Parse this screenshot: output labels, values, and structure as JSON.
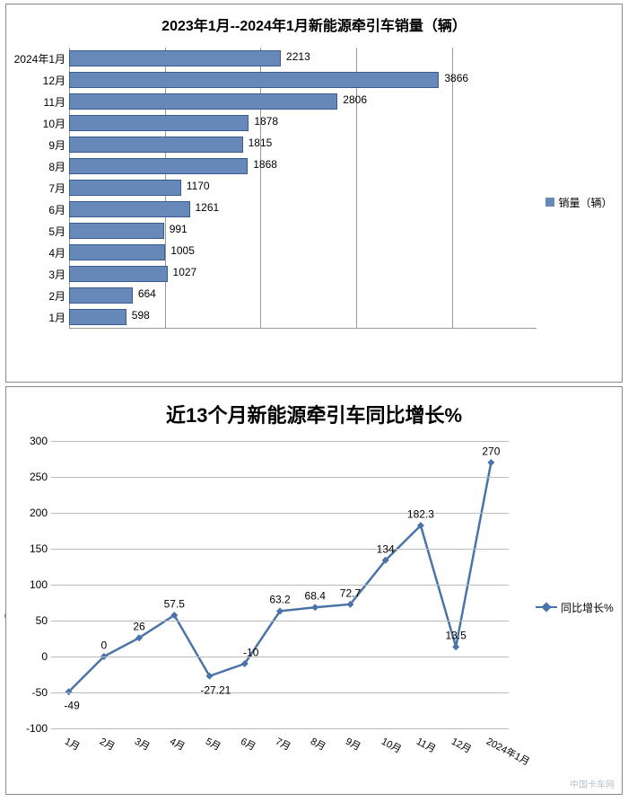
{
  "bar_chart": {
    "type": "bar-horizontal",
    "title": "2023年1月--2024年1月新能源牵引车销量（辆）",
    "title_fontsize": 16,
    "title_weight": "bold",
    "legend_label": "销量（辆）",
    "legend_color": "#6689b9",
    "bar_color": "#6689b9",
    "bar_border": "#3a5a90",
    "background_color": "#ffffff",
    "grid_color": "#999999",
    "label_fontsize": 12,
    "xlim": [
      0,
      4500
    ],
    "xtick_step": 1000,
    "xticks": [
      0,
      1000,
      2000,
      3000,
      4000
    ],
    "categories": [
      "2024年1月",
      "12月",
      "11月",
      "10月",
      "9月",
      "8月",
      "7月",
      "6月",
      "5月",
      "4月",
      "3月",
      "2月",
      "1月"
    ],
    "values": [
      2213,
      3866,
      2806,
      1878,
      1815,
      1868,
      1170,
      1261,
      991,
      1005,
      1027,
      664,
      598
    ]
  },
  "line_chart": {
    "type": "line",
    "title": "近13个月新能源牵引车同比增长%",
    "title_fontsize": 22,
    "title_weight": "bold",
    "legend_label": "同比增长%",
    "line_color": "#4a74a8",
    "marker_color": "#4a74a8",
    "marker_style": "diamond",
    "marker_size": 8,
    "line_width": 2.5,
    "background_color": "#ffffff",
    "grid_color": "#bbbbbb",
    "label_fontsize": 12,
    "ylim": [
      -100,
      300
    ],
    "ytick_step": 50,
    "yticks": [
      -100,
      -50,
      0,
      50,
      100,
      150,
      200,
      250,
      300
    ],
    "categories": [
      "1月",
      "2月",
      "3月",
      "4月",
      "5月",
      "6月",
      "7月",
      "8月",
      "9月",
      "10月",
      "11月",
      "12月",
      "2024年1月"
    ],
    "values": [
      -49,
      0,
      26,
      57.5,
      -27.21,
      -10,
      63.2,
      68.4,
      72.7,
      134,
      182.3,
      13.5,
      270
    ],
    "value_labels": [
      "-49",
      "0",
      "26",
      "57.5",
      "-27.21",
      "-10",
      "63.2",
      "68.4",
      "72.7",
      "134",
      "182.3",
      "13.5",
      "270"
    ]
  },
  "watermark": "中国卡车网"
}
